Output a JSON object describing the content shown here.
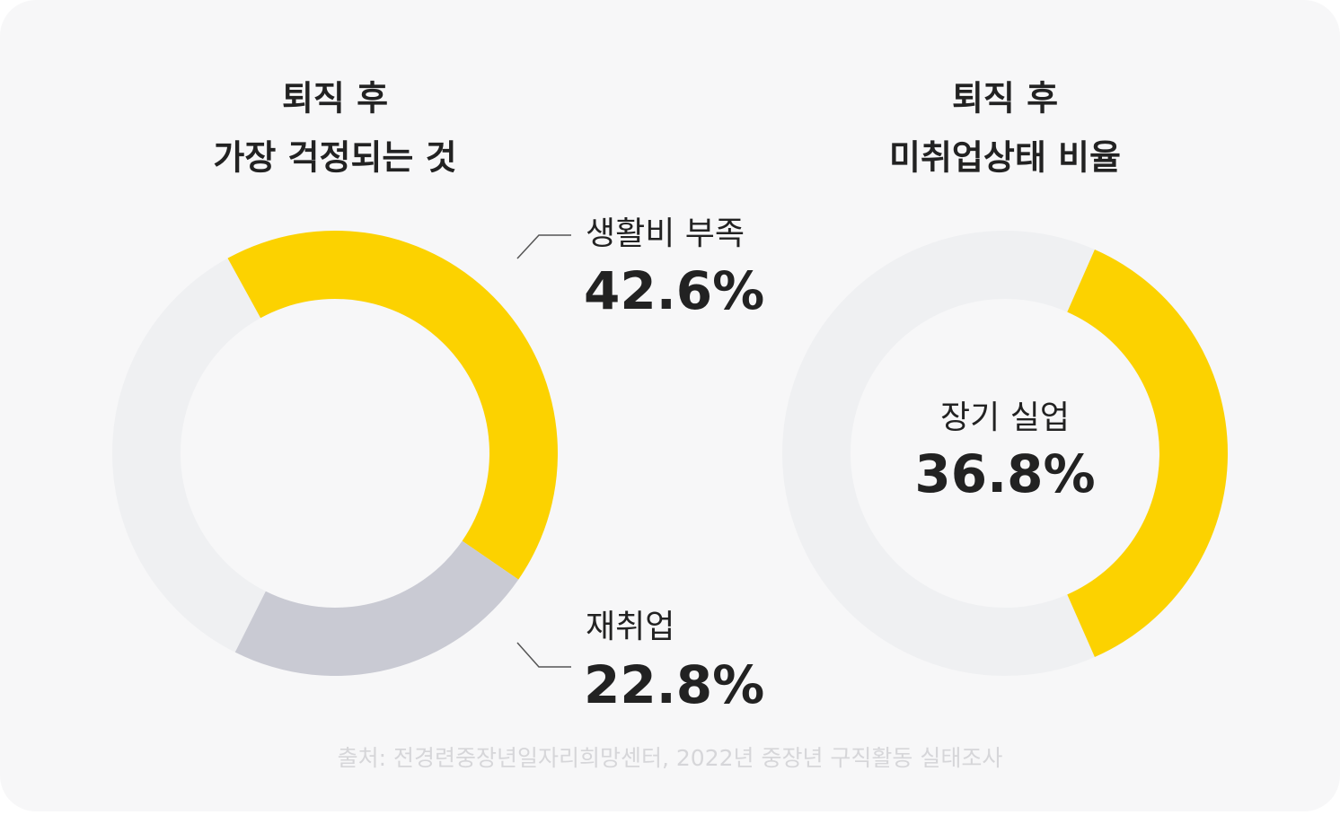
{
  "chart_data": [
    {
      "type": "donut",
      "title": [
        "퇴직 후",
        "가장 걱정되는 것"
      ],
      "categories": [
        "생활비 부족",
        "재취업"
      ],
      "values": [
        42.6,
        22.8
      ],
      "value_labels": [
        "42.6%",
        "22.8%"
      ],
      "colors": [
        "#fcd200",
        "#c9cad3"
      ],
      "track_color": "#eff0f2",
      "label_position": "outside"
    },
    {
      "type": "donut",
      "title": [
        "퇴직 후",
        "미취업상태 비율"
      ],
      "categories": [
        "장기 실업"
      ],
      "values": [
        36.8
      ],
      "value_labels": [
        "36.8%"
      ],
      "colors": [
        "#fcd200"
      ],
      "track_color": "#eff0f2",
      "label_position": "center"
    }
  ],
  "source": "출처: 전경련중장년일자리희망센터, 2022년 중장년 구직활동 실태조사"
}
